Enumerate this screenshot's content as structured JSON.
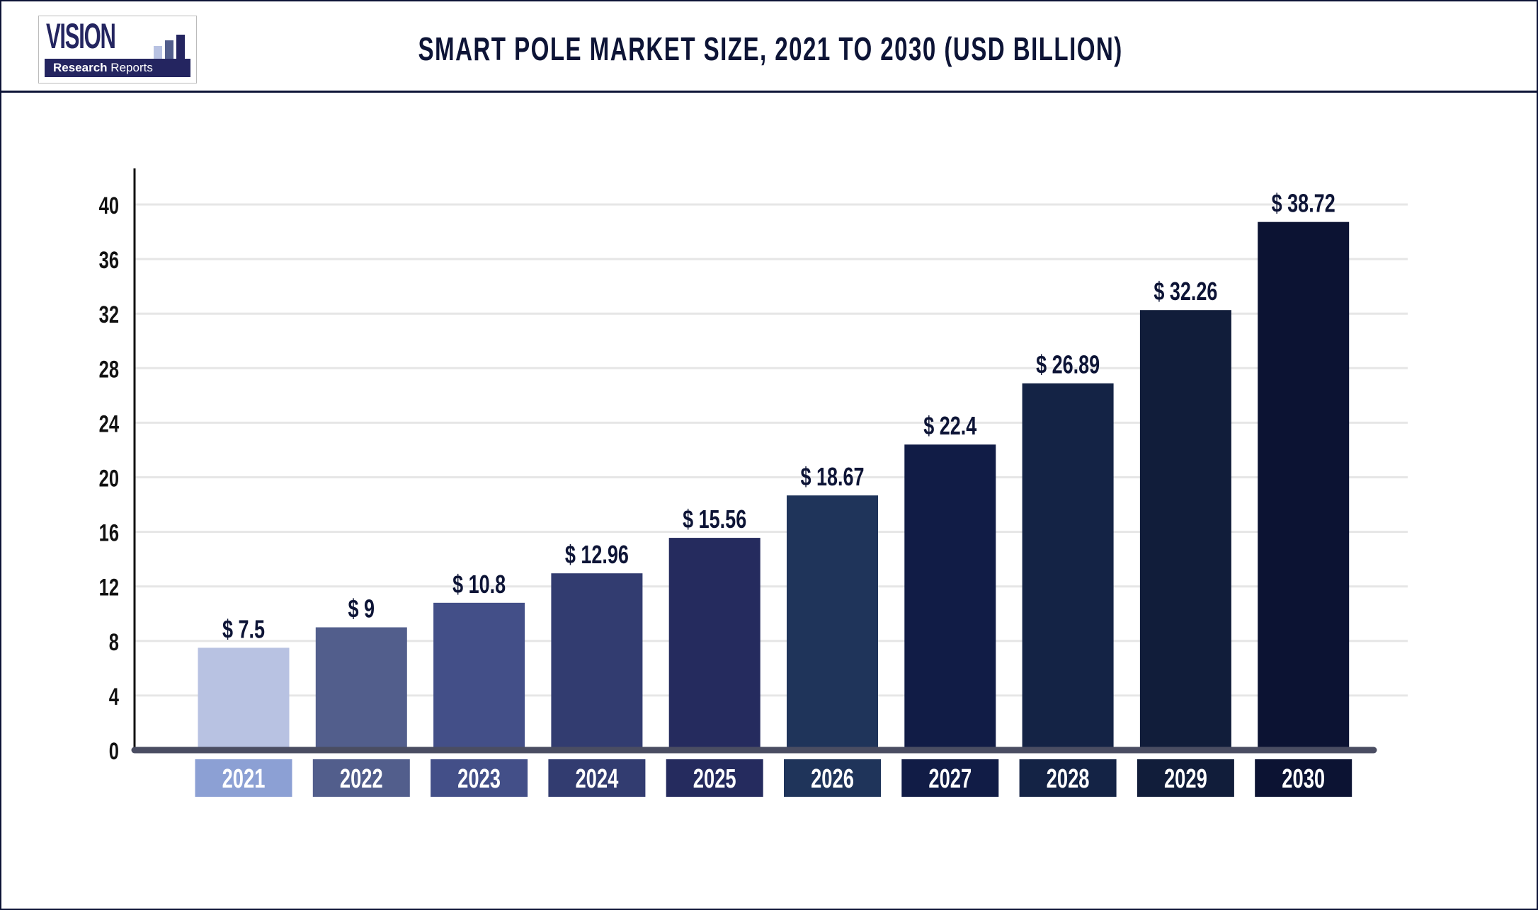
{
  "header": {
    "title": "SMART POLE MARKET SIZE, 2021 TO 2030 (USD BILLION)",
    "logo": {
      "word": "VISION",
      "tagline_bold": "Research",
      "tagline": "Reports"
    }
  },
  "chart_data": {
    "type": "bar",
    "title": "SMART POLE MARKET SIZE, 2021 TO 2030 (USD BILLION)",
    "xlabel": "",
    "ylabel": "",
    "ylim": [
      0,
      40
    ],
    "yticks": [
      0,
      4,
      8,
      12,
      16,
      20,
      24,
      28,
      32,
      36,
      40
    ],
    "grid": true,
    "categories": [
      "2021",
      "2022",
      "2023",
      "2024",
      "2025",
      "2026",
      "2027",
      "2028",
      "2029",
      "2030"
    ],
    "values": [
      7.5,
      9,
      10.8,
      12.96,
      15.56,
      18.67,
      22.4,
      26.89,
      32.26,
      38.72
    ],
    "data_labels": [
      "$ 7.5",
      "$ 9",
      "$ 10.8",
      "$ 12.96",
      "$ 15.56",
      "$ 18.67",
      "$ 22.4",
      "$ 26.89",
      "$ 32.26",
      "$ 38.72"
    ],
    "bar_colors": [
      "#b8c2e2",
      "#525e8c",
      "#434f88",
      "#323c70",
      "#252b5e",
      "#1f345a",
      "#111c46",
      "#142345",
      "#111d3a",
      "#0c1333"
    ],
    "label_box_colors": [
      "#8ca0d4",
      "#525e8c",
      "#434f88",
      "#323c70",
      "#252b5e",
      "#1f345a",
      "#111c46",
      "#142345",
      "#111d3a",
      "#0c1333"
    ]
  }
}
